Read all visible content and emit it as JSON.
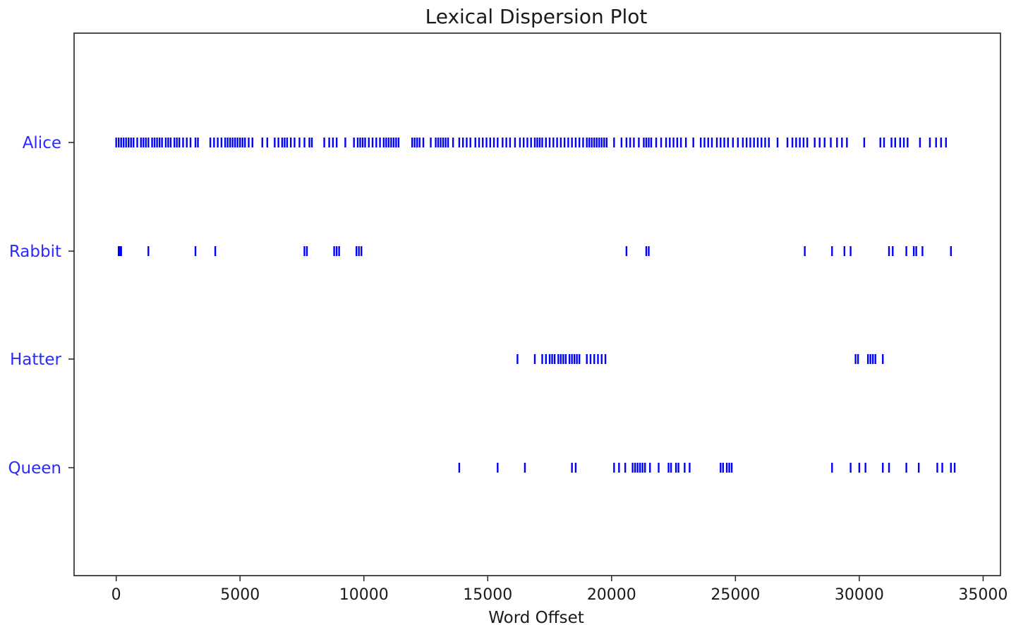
{
  "chart_data": {
    "type": "scatter",
    "subtype": "lexical-dispersion",
    "title": "Lexical Dispersion Plot",
    "xlabel": "Word Offset",
    "ylabel": "",
    "xlim": [
      -1700,
      35700
    ],
    "xticks": [
      0,
      5000,
      10000,
      15000,
      20000,
      25000,
      30000,
      35000
    ],
    "grid": false,
    "legend": "none",
    "marker_color": "#0000ff",
    "label_color": "#2a2aff",
    "series": [
      {
        "name": "Alice",
        "x": [
          0,
          100,
          200,
          300,
          400,
          500,
          600,
          700,
          850,
          1000,
          1100,
          1200,
          1300,
          1450,
          1550,
          1650,
          1750,
          1850,
          2000,
          2100,
          2200,
          2350,
          2450,
          2550,
          2700,
          2850,
          3000,
          3200,
          3300,
          3800,
          3950,
          4100,
          4250,
          4400,
          4500,
          4600,
          4700,
          4800,
          4900,
          5000,
          5100,
          5200,
          5350,
          5500,
          5900,
          6100,
          6400,
          6550,
          6700,
          6800,
          6900,
          7050,
          7200,
          7400,
          7600,
          7800,
          7900,
          8400,
          8600,
          8750,
          8900,
          9250,
          9600,
          9750,
          9850,
          9950,
          10050,
          10200,
          10350,
          10500,
          10650,
          10800,
          10900,
          11000,
          11100,
          11200,
          11300,
          11400,
          11950,
          12050,
          12150,
          12250,
          12400,
          12700,
          12900,
          13000,
          13100,
          13200,
          13300,
          13400,
          13600,
          13850,
          14000,
          14150,
          14300,
          14500,
          14650,
          14800,
          14950,
          15100,
          15250,
          15400,
          15600,
          15750,
          15900,
          16100,
          16300,
          16450,
          16600,
          16750,
          16900,
          17000,
          17100,
          17200,
          17350,
          17500,
          17650,
          17800,
          17950,
          18100,
          18250,
          18400,
          18550,
          18700,
          18850,
          19000,
          19100,
          19200,
          19300,
          19400,
          19500,
          19600,
          19700,
          19800,
          20100,
          20400,
          20600,
          20750,
          20900,
          21100,
          21300,
          21400,
          21500,
          21600,
          21800,
          22000,
          22200,
          22350,
          22500,
          22650,
          22800,
          23000,
          23300,
          23600,
          23750,
          23900,
          24050,
          24250,
          24400,
          24550,
          24700,
          24900,
          25100,
          25300,
          25450,
          25600,
          25750,
          25900,
          26050,
          26200,
          26350,
          26700,
          27100,
          27300,
          27450,
          27600,
          27750,
          27900,
          28200,
          28400,
          28600,
          28850,
          29100,
          29300,
          29500,
          30200,
          30850,
          31000,
          31300,
          31450,
          31650,
          31800,
          31950,
          32450,
          32850,
          33100,
          33300,
          33500
        ],
        "y": "Alice"
      },
      {
        "name": "Rabbit",
        "x": [
          100,
          150,
          200,
          1300,
          3200,
          4000,
          7600,
          7700,
          8800,
          8900,
          9000,
          9700,
          9800,
          9900,
          20600,
          21400,
          21500,
          27800,
          28900,
          29400,
          29650,
          31200,
          31350,
          31900,
          32200,
          32300,
          32550,
          33700
        ],
        "y": "Rabbit"
      },
      {
        "name": "Hatter",
        "x": [
          16200,
          16900,
          17200,
          17350,
          17500,
          17600,
          17700,
          17850,
          17950,
          18050,
          18150,
          18300,
          18400,
          18500,
          18600,
          18700,
          19000,
          19150,
          19300,
          19450,
          19600,
          19750,
          29850,
          29950,
          30350,
          30450,
          30550,
          30650,
          30950
        ],
        "y": "Hatter"
      },
      {
        "name": "Queen",
        "x": [
          13850,
          15400,
          16500,
          18400,
          18550,
          20100,
          20300,
          20550,
          20850,
          20950,
          21050,
          21150,
          21250,
          21350,
          21550,
          21900,
          22300,
          22400,
          22600,
          22700,
          22950,
          23150,
          24400,
          24500,
          24650,
          24750,
          24850,
          28900,
          29650,
          30000,
          30250,
          30950,
          31200,
          31900,
          32400,
          33150,
          33350,
          33700,
          33850
        ],
        "y": "Queen"
      }
    ]
  }
}
